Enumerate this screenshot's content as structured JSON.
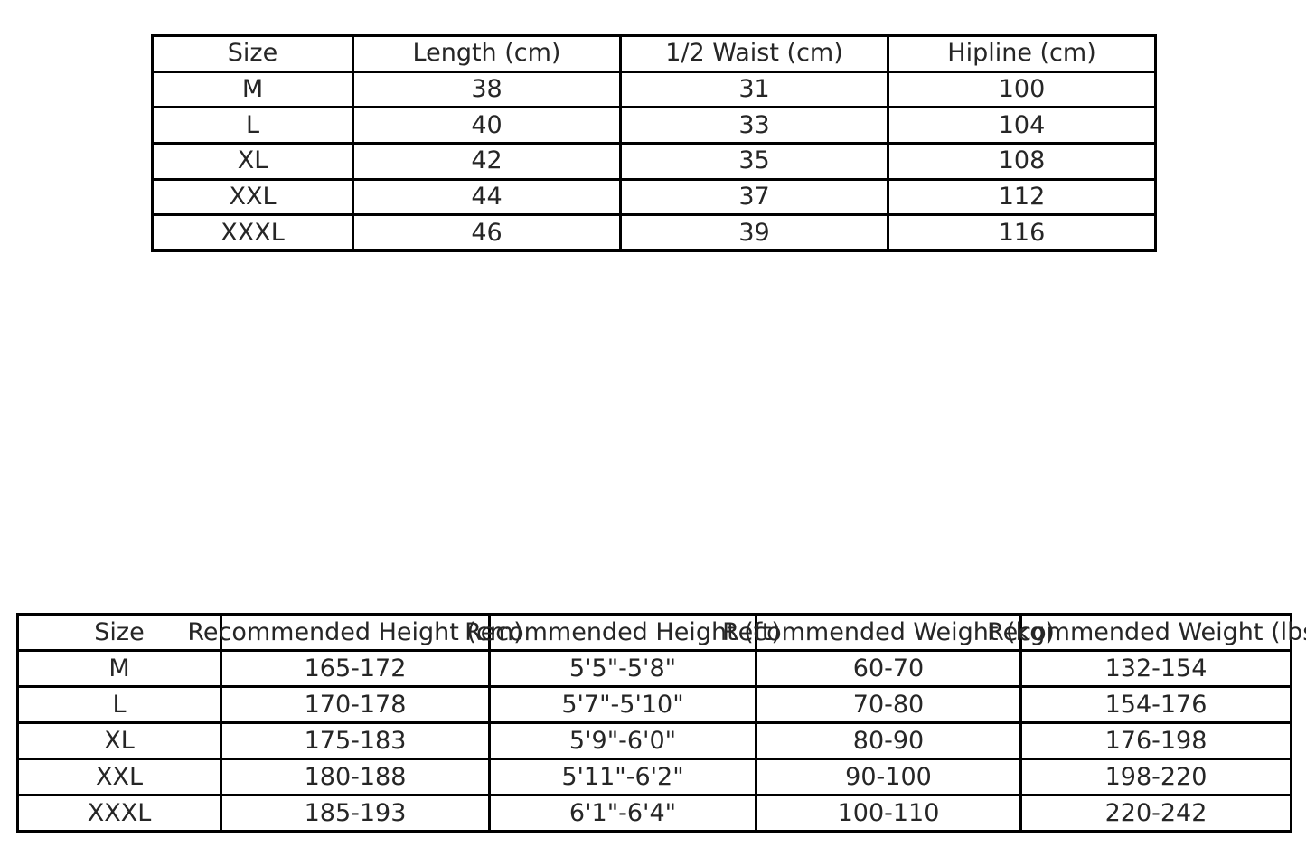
{
  "colors": {
    "background": "#ffffff",
    "border": "#000000",
    "text": "#262626"
  },
  "chart_data": [
    {
      "type": "table",
      "headers": [
        "Size",
        "Length (cm)",
        "1/2 Waist (cm)",
        "Hipline (cm)"
      ],
      "rows": [
        [
          "M",
          "38",
          "31",
          "100"
        ],
        [
          "L",
          "40",
          "33",
          "104"
        ],
        [
          "XL",
          "42",
          "35",
          "108"
        ],
        [
          "XXL",
          "44",
          "37",
          "112"
        ],
        [
          "XXXL",
          "46",
          "39",
          "116"
        ]
      ]
    },
    {
      "type": "table",
      "headers": [
        "Size",
        "Recommended Height (cm)",
        "Recommended Height (ft)",
        "Recommended Weight (kg)",
        "Recommended Weight (lbs)"
      ],
      "rows": [
        [
          "M",
          "165-172",
          "5'5\"-5'8\"",
          "60-70",
          "132-154"
        ],
        [
          "L",
          "170-178",
          "5'7\"-5'10\"",
          "70-80",
          "154-176"
        ],
        [
          "XL",
          "175-183",
          "5'9\"-6'0\"",
          "80-90",
          "176-198"
        ],
        [
          "XXL",
          "180-188",
          "5'11\"-6'2\"",
          "90-100",
          "198-220"
        ],
        [
          "XXXL",
          "185-193",
          "6'1\"-6'4\"",
          "100-110",
          "220-242"
        ]
      ]
    }
  ]
}
